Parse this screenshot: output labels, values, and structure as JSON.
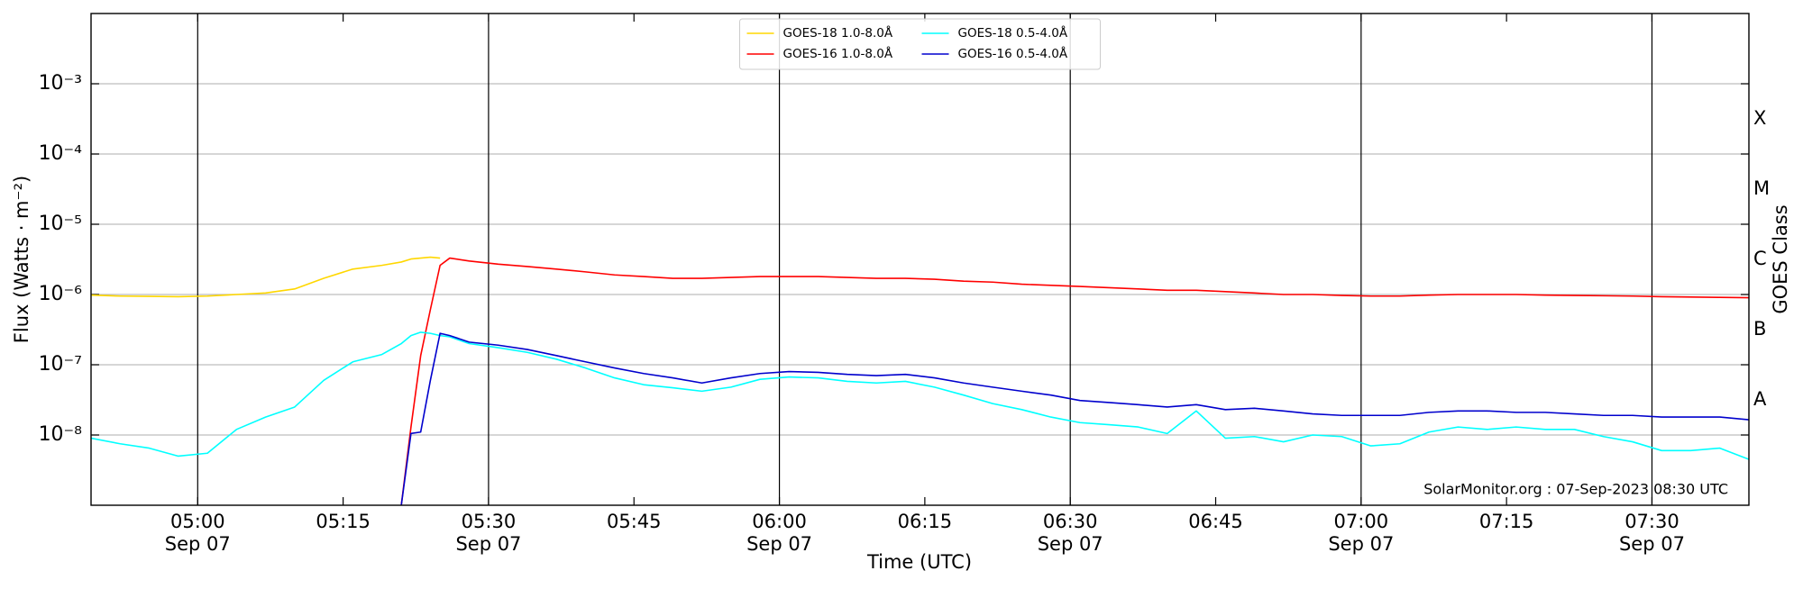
{
  "chart_data": {
    "type": "line",
    "xlabel": "Time (UTC)",
    "ylabel": "Flux (Watts · m⁻²)",
    "y2label": "GOES Class",
    "annotation": "SolarMonitor.org : 07-Sep-2023 08:30 UTC",
    "yscale": "log",
    "grid": true,
    "legend": "upper center",
    "legend_columns": 2,
    "xlim": [
      "04:49",
      "07:40"
    ],
    "xticks": [
      {
        "value": "05:00",
        "label": "05:00",
        "date": "Sep 07"
      },
      {
        "value": "05:15",
        "label": "05:15"
      },
      {
        "value": "05:30",
        "label": "05:30",
        "date": "Sep 07"
      },
      {
        "value": "05:45",
        "label": "05:45"
      },
      {
        "value": "06:00",
        "label": "06:00",
        "date": "Sep 07"
      },
      {
        "value": "06:15",
        "label": "06:15"
      },
      {
        "value": "06:30",
        "label": "06:30",
        "date": "Sep 07"
      },
      {
        "value": "06:45",
        "label": "06:45"
      },
      {
        "value": "07:00",
        "label": "07:00",
        "date": "Sep 07"
      },
      {
        "value": "07:15",
        "label": "07:15"
      },
      {
        "value": "07:30",
        "label": "07:30",
        "date": "Sep 07"
      }
    ],
    "ylim": [
      1e-09,
      0.01
    ],
    "yticks": [
      {
        "value": 1e-08,
        "label": "10⁻⁸"
      },
      {
        "value": 1e-07,
        "label": "10⁻⁷"
      },
      {
        "value": 1e-06,
        "label": "10⁻⁶"
      },
      {
        "value": 1e-05,
        "label": "10⁻⁵"
      },
      {
        "value": 0.0001,
        "label": "10⁻⁴"
      },
      {
        "value": 0.001,
        "label": "10⁻³"
      }
    ],
    "y2lim": [
      1e-09,
      0.01
    ],
    "y2ticks": [
      {
        "value": 3.16e-08,
        "label": "A"
      },
      {
        "value": 3.16e-07,
        "label": "B"
      },
      {
        "value": 3.16e-06,
        "label": "C"
      },
      {
        "value": 3.16e-05,
        "label": "M"
      },
      {
        "value": 0.000316,
        "label": "X"
      }
    ],
    "x": [
      "04:49",
      "04:52",
      "04:55",
      "04:58",
      "05:01",
      "05:04",
      "05:07",
      "05:10",
      "05:13",
      "05:16",
      "05:19",
      "05:21",
      "05:22",
      "05:23",
      "05:24",
      "05:25",
      "05:26",
      "05:28",
      "05:31",
      "05:34",
      "05:37",
      "05:40",
      "05:43",
      "05:46",
      "05:49",
      "05:52",
      "05:55",
      "05:58",
      "06:01",
      "06:04",
      "06:07",
      "06:10",
      "06:13",
      "06:16",
      "06:19",
      "06:22",
      "06:25",
      "06:28",
      "06:31",
      "06:34",
      "06:37",
      "06:40",
      "06:43",
      "06:46",
      "06:49",
      "06:52",
      "06:55",
      "06:58",
      "07:01",
      "07:04",
      "07:07",
      "07:10",
      "07:13",
      "07:16",
      "07:19",
      "07:22",
      "07:25",
      "07:28",
      "07:31",
      "07:34",
      "07:37",
      "07:40"
    ],
    "series": [
      {
        "name": "GOES-18 1.0-8.0Å",
        "color": "#ffd700",
        "values": [
          9.8e-07,
          9.5e-07,
          9.4e-07,
          9.3e-07,
          9.5e-07,
          1e-06,
          1.05e-06,
          1.2e-06,
          1.7e-06,
          2.3e-06,
          2.6e-06,
          2.9e-06,
          3.2e-06,
          3.3e-06,
          3.4e-06,
          3.3e-06,
          null,
          null,
          null,
          null,
          null,
          null,
          null,
          null,
          null,
          null,
          null,
          null,
          null,
          null,
          null,
          null,
          null,
          null,
          null,
          null,
          null,
          null,
          null,
          null,
          null,
          null,
          null,
          null,
          null,
          null,
          null,
          null,
          null,
          null,
          null,
          null,
          null,
          null,
          null,
          null,
          null,
          null,
          null,
          null,
          null,
          null
        ]
      },
      {
        "name": "GOES-16 1.0-8.0Å",
        "color": "#ff0000",
        "values": [
          null,
          null,
          null,
          null,
          null,
          null,
          null,
          null,
          null,
          null,
          null,
          1e-09,
          1.3e-08,
          1.35e-07,
          6.1e-07,
          2.6e-06,
          3.3e-06,
          3e-06,
          2.7e-06,
          2.5e-06,
          2.3e-06,
          2.1e-06,
          1.9e-06,
          1.8e-06,
          1.7e-06,
          1.7e-06,
          1.75e-06,
          1.8e-06,
          1.8e-06,
          1.8e-06,
          1.75e-06,
          1.7e-06,
          1.7e-06,
          1.65e-06,
          1.55e-06,
          1.5e-06,
          1.4e-06,
          1.35e-06,
          1.3e-06,
          1.25e-06,
          1.2e-06,
          1.15e-06,
          1.15e-06,
          1.1e-06,
          1.05e-06,
          1e-06,
          1e-06,
          9.7e-07,
          9.5e-07,
          9.5e-07,
          9.8e-07,
          1e-06,
          1e-06,
          1e-06,
          9.8e-07,
          9.7e-07,
          9.6e-07,
          9.5e-07,
          9.3e-07,
          9.2e-07,
          9.1e-07,
          9e-07
        ]
      },
      {
        "name": "GOES-18 0.5-4.0Å",
        "color": "#00ffff",
        "values": [
          9e-09,
          7.5e-09,
          6.5e-09,
          5e-09,
          5.5e-09,
          1.2e-08,
          1.8e-08,
          2.5e-08,
          6e-08,
          1.1e-07,
          1.4e-07,
          2e-07,
          2.6e-07,
          2.9e-07,
          2.8e-07,
          2.6e-07,
          2.5e-07,
          2e-07,
          1.75e-07,
          1.5e-07,
          1.2e-07,
          9e-08,
          6.5e-08,
          5.2e-08,
          4.7e-08,
          4.2e-08,
          4.8e-08,
          6.2e-08,
          6.7e-08,
          6.5e-08,
          5.8e-08,
          5.5e-08,
          5.8e-08,
          4.8e-08,
          3.7e-08,
          2.8e-08,
          2.3e-08,
          1.8e-08,
          1.5e-08,
          1.4e-08,
          1.3e-08,
          1.05e-08,
          2.2e-08,
          9e-09,
          9.5e-09,
          8e-09,
          1e-08,
          9.5e-09,
          7e-09,
          7.5e-09,
          1.1e-08,
          1.3e-08,
          1.2e-08,
          1.3e-08,
          1.2e-08,
          1.2e-08,
          9.5e-09,
          8e-09,
          6e-09,
          6e-09,
          6.5e-09,
          4.5e-09
        ]
      },
      {
        "name": "GOES-16 0.5-4.0Å",
        "color": "#0000cd",
        "values": [
          null,
          null,
          null,
          null,
          null,
          null,
          null,
          null,
          null,
          null,
          null,
          1e-09,
          1.05e-08,
          1.1e-08,
          6e-08,
          2.8e-07,
          2.6e-07,
          2.1e-07,
          1.9e-07,
          1.65e-07,
          1.35e-07,
          1.1e-07,
          9e-08,
          7.5e-08,
          6.5e-08,
          5.5e-08,
          6.5e-08,
          7.5e-08,
          8e-08,
          7.8e-08,
          7.3e-08,
          7e-08,
          7.3e-08,
          6.5e-08,
          5.5e-08,
          4.8e-08,
          4.2e-08,
          3.7e-08,
          3.1e-08,
          2.9e-08,
          2.7e-08,
          2.5e-08,
          2.7e-08,
          2.3e-08,
          2.4e-08,
          2.2e-08,
          2e-08,
          1.9e-08,
          1.9e-08,
          1.9e-08,
          2.1e-08,
          2.2e-08,
          2.2e-08,
          2.1e-08,
          2.1e-08,
          2e-08,
          1.9e-08,
          1.9e-08,
          1.8e-08,
          1.8e-08,
          1.8e-08,
          1.65e-08
        ]
      }
    ]
  }
}
